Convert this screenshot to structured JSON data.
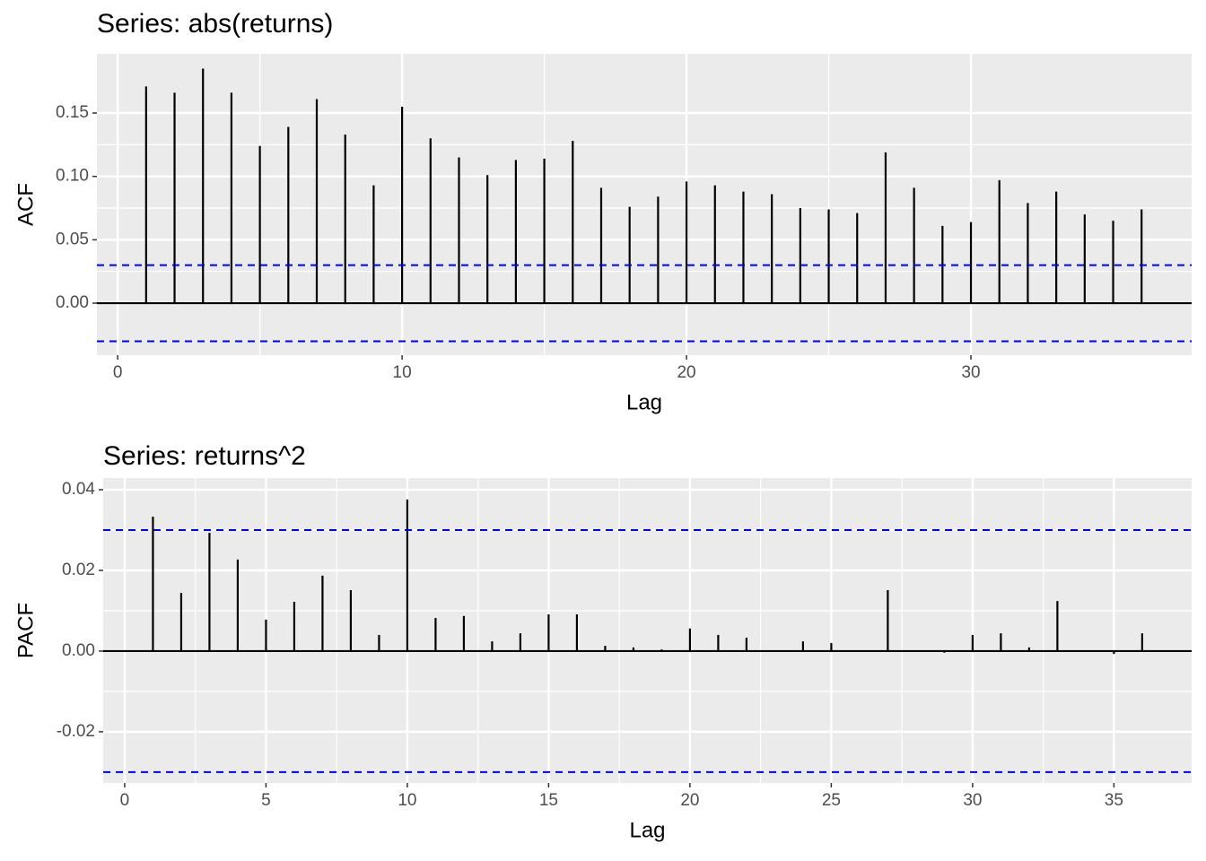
{
  "chart_data": [
    {
      "type": "acf",
      "title": "Series: abs(returns)",
      "x_label": "Lag",
      "y_label": "ACF",
      "x": [
        1,
        2,
        3,
        4,
        5,
        6,
        7,
        8,
        9,
        10,
        11,
        12,
        13,
        14,
        15,
        16,
        17,
        18,
        19,
        20,
        21,
        22,
        23,
        24,
        25,
        26,
        27,
        28,
        29,
        30,
        31,
        32,
        33,
        34,
        35,
        36
      ],
      "values": [
        0.171,
        0.166,
        0.185,
        0.166,
        0.124,
        0.139,
        0.161,
        0.133,
        0.093,
        0.155,
        0.13,
        0.115,
        0.101,
        0.113,
        0.114,
        0.128,
        0.091,
        0.076,
        0.084,
        0.096,
        0.093,
        0.088,
        0.086,
        0.075,
        0.074,
        0.071,
        0.119,
        0.091,
        0.061,
        0.064,
        0.097,
        0.079,
        0.088,
        0.07,
        0.065,
        0.074
      ],
      "color": "#000000",
      "confidence_bounds": [
        0.03,
        -0.03
      ],
      "confidence_color": "#0000ff",
      "xlim": [
        -0.73,
        37.76
      ],
      "xticks": [
        0,
        10,
        20,
        30
      ],
      "ylim": [
        -0.041,
        0.1967
      ],
      "yticks": [
        {
          "value": 0,
          "label": "0.00"
        },
        {
          "value": 0.05,
          "label": "0.05"
        },
        {
          "value": 0.1,
          "label": "0.10"
        },
        {
          "value": 0.15,
          "label": "0.15"
        }
      ],
      "grid": true
    },
    {
      "type": "acf",
      "title": "Series: returns^2",
      "x_label": "Lag",
      "y_label": "PACF",
      "x": [
        1,
        2,
        3,
        4,
        5,
        6,
        7,
        8,
        9,
        10,
        11,
        12,
        13,
        14,
        15,
        16,
        17,
        18,
        19,
        20,
        21,
        22,
        23,
        24,
        25,
        26,
        27,
        28,
        29,
        30,
        31,
        32,
        33,
        34,
        35,
        36
      ],
      "values": [
        0.0333,
        0.0144,
        0.0293,
        0.0227,
        0.0078,
        0.0122,
        0.0187,
        0.0151,
        0.004,
        0.0376,
        0.0082,
        0.0087,
        0.0024,
        0.0044,
        0.0091,
        0.0091,
        0.0013,
        0.0009,
        0.0004,
        0.0056,
        0.004,
        0.0033,
        0,
        0.0024,
        0.002,
        0.0002,
        0.0151,
        0,
        -0.0004,
        0.004,
        0.0044,
        0.0009,
        0.0124,
        0,
        -0.0007,
        0.0044
      ],
      "color": "#000000",
      "confidence_bounds": [
        0.03,
        -0.03
      ],
      "confidence_color": "#0000ff",
      "xlim": [
        -0.76,
        37.75
      ],
      "xticks": [
        0,
        5,
        10,
        15,
        20,
        25,
        30,
        35
      ],
      "ylim": [
        -0.0327,
        0.0429
      ],
      "yticks": [
        {
          "value": -0.02,
          "label": "-0.02"
        },
        {
          "value": 0,
          "label": "0.00"
        },
        {
          "value": 0.02,
          "label": "0.02"
        },
        {
          "value": 0.04,
          "label": "0.04"
        }
      ],
      "grid": true
    }
  ]
}
